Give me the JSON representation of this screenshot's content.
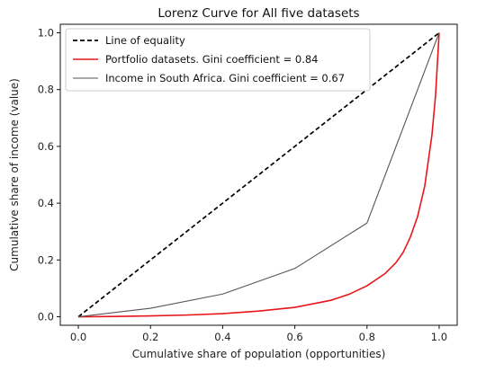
{
  "chart_data": {
    "type": "line",
    "title": "Lorenz Curve for All five datasets",
    "xlabel": "Cumulative share of population (opportunities)",
    "ylabel": "Cumulative share of income (value)",
    "xlim": [
      -0.05,
      1.05
    ],
    "ylim": [
      -0.03,
      1.03
    ],
    "xticks": [
      "0.0",
      "0.2",
      "0.4",
      "0.6",
      "0.8",
      "1.0"
    ],
    "yticks": [
      "0.0",
      "0.2",
      "0.4",
      "0.6",
      "0.8",
      "1.0"
    ],
    "grid": false,
    "legend_position": "top-left",
    "series": [
      {
        "name": "Line of equality",
        "color": "#000000",
        "style": "dashed",
        "x": [
          0,
          1
        ],
        "y": [
          0,
          1
        ]
      },
      {
        "name": "Portfolio datasets. Gini coefficient = 0.84",
        "color": "#e8161b",
        "style": "solid",
        "x": [
          0,
          0.1,
          0.2,
          0.3,
          0.4,
          0.5,
          0.6,
          0.7,
          0.75,
          0.8,
          0.85,
          0.88,
          0.9,
          0.92,
          0.94,
          0.96,
          0.98,
          0.99,
          1.0
        ],
        "y": [
          0,
          0.001,
          0.003,
          0.006,
          0.011,
          0.02,
          0.033,
          0.058,
          0.079,
          0.109,
          0.152,
          0.19,
          0.226,
          0.28,
          0.352,
          0.46,
          0.64,
          0.78,
          1.0
        ]
      },
      {
        "name": "Income in South Africa. Gini coefficient = 0.67",
        "color": "#555555",
        "style": "solid",
        "x": [
          0,
          0.2,
          0.4,
          0.6,
          0.8,
          1.0
        ],
        "y": [
          0,
          0.03,
          0.08,
          0.17,
          0.33,
          1.0
        ]
      }
    ]
  }
}
